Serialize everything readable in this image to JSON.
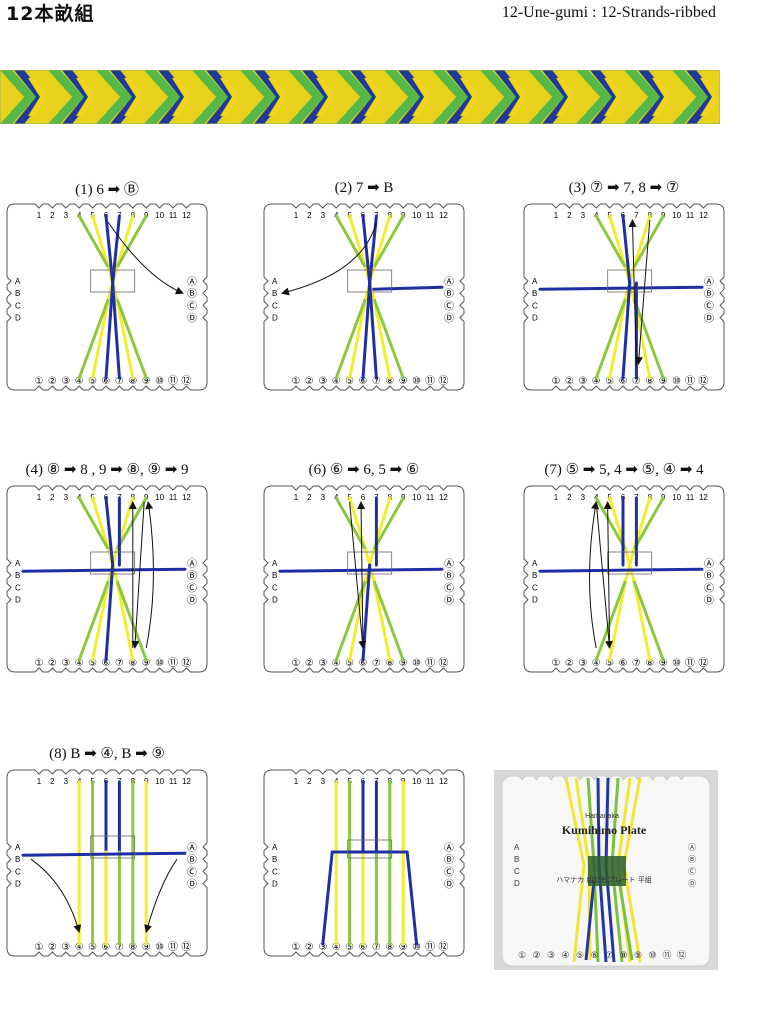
{
  "header": {
    "title_jp": "12本畝組",
    "title_en": "12-Une-gumi : 12-Strands-ribbed"
  },
  "plate": {
    "top_numbers": [
      "1",
      "2",
      "3",
      "4",
      "5",
      "6",
      "7",
      "8",
      "9",
      "10",
      "11",
      "12"
    ],
    "bottom_numbers": [
      "①",
      "②",
      "③",
      "④",
      "⑤",
      "⑥",
      "⑦",
      "⑧",
      "⑨",
      "⑩",
      "⑪",
      "⑫"
    ],
    "left_letters": [
      "A",
      "B",
      "C",
      "D"
    ],
    "right_letters": [
      "Ⓐ",
      "Ⓑ",
      "Ⓒ",
      "Ⓓ"
    ]
  },
  "steps": [
    {
      "label": "(1) 6 ➡ Ⓑ"
    },
    {
      "label": "(2) 7 ➡ B"
    },
    {
      "label": "(3) ⑦ ➡ 7,  8 ➡ ⑦"
    },
    {
      "label": "(4) ⑧ ➡ 8 ,  9 ➡ ⑧, ⑨ ➡ 9"
    },
    {
      "label": "(6) ⑥ ➡ 6, 5 ➡ ⑥"
    },
    {
      "label": "(7)  ⑤ ➡ 5,  4 ➡ ⑤, ④ ➡ 4"
    },
    {
      "label": "(8)  B ➡ ④,  B ➡ ⑨"
    },
    {
      "label": ""
    }
  ],
  "photo": {
    "brand": "Hamanaka",
    "name": "Kumihimo Plate",
    "sub_jp": "ハマナカ 組ひもプレート 平組",
    "letters_left": [
      "A",
      "B",
      "C",
      "D"
    ],
    "letters_right": [
      "Ⓐ",
      "Ⓑ",
      "Ⓒ",
      "Ⓓ"
    ],
    "bottom_numbers": [
      "①",
      "②",
      "③",
      "④",
      "⑤",
      "⑥",
      "⑦",
      "⑧",
      "⑨",
      "⑩",
      "⑪",
      "⑫"
    ]
  },
  "colors": {
    "yellow": "#f2ee2e",
    "green": "#8dc63f",
    "blue": "#1f2fa3",
    "outline": "#555555",
    "braid_blue": "#1e3b9c",
    "braid_yellow": "#f5d21c",
    "braid_green": "#57b848"
  }
}
